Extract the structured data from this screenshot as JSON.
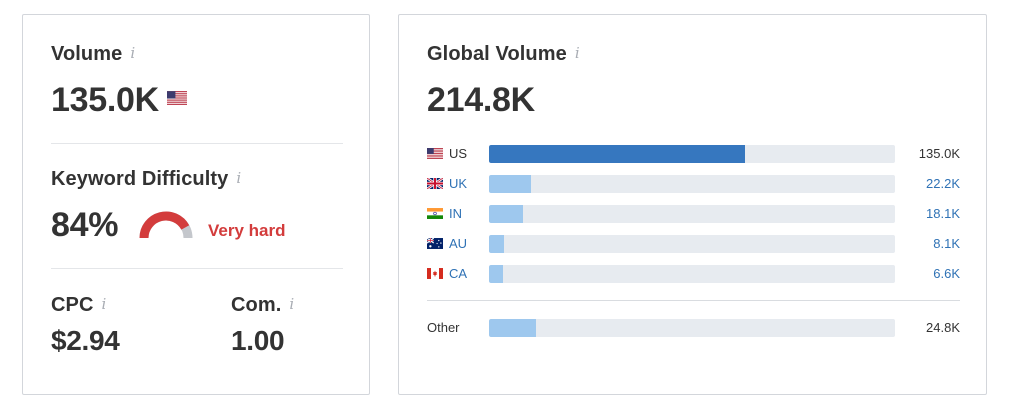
{
  "volume": {
    "label": "Volume",
    "info": "i",
    "value": "135.0K"
  },
  "difficulty": {
    "label": "Keyword Difficulty",
    "info": "i",
    "value": "84%",
    "rating": "Very hard",
    "gauge_fraction": 0.84,
    "rating_color": "#d33c3c"
  },
  "cpc": {
    "label": "CPC",
    "info": "i",
    "value": "$2.94"
  },
  "competition": {
    "label": "Com.",
    "info": "i",
    "value": "1.00"
  },
  "global": {
    "label": "Global Volume",
    "info": "i",
    "value": "214.8K",
    "max": 135.0,
    "countries": [
      {
        "code": "US",
        "value_text": "135.0K",
        "value": 135.0,
        "flag": "us-flag-icon",
        "active": true
      },
      {
        "code": "UK",
        "value_text": "22.2K",
        "value": 22.2,
        "flag": "uk-flag-icon",
        "active": false
      },
      {
        "code": "IN",
        "value_text": "18.1K",
        "value": 18.1,
        "flag": "in-flag-icon",
        "active": false
      },
      {
        "code": "AU",
        "value_text": "8.1K",
        "value": 8.1,
        "flag": "au-flag-icon",
        "active": false
      },
      {
        "code": "CA",
        "value_text": "6.6K",
        "value": 6.6,
        "flag": "ca-flag-icon",
        "active": false
      }
    ],
    "other": {
      "label": "Other",
      "value_text": "24.8K",
      "value": 24.8
    }
  },
  "colors": {
    "bar_active": "#3677bf",
    "bar_light": "#9ec8ee",
    "track": "#e7ebf0",
    "link": "#2f72b5"
  }
}
